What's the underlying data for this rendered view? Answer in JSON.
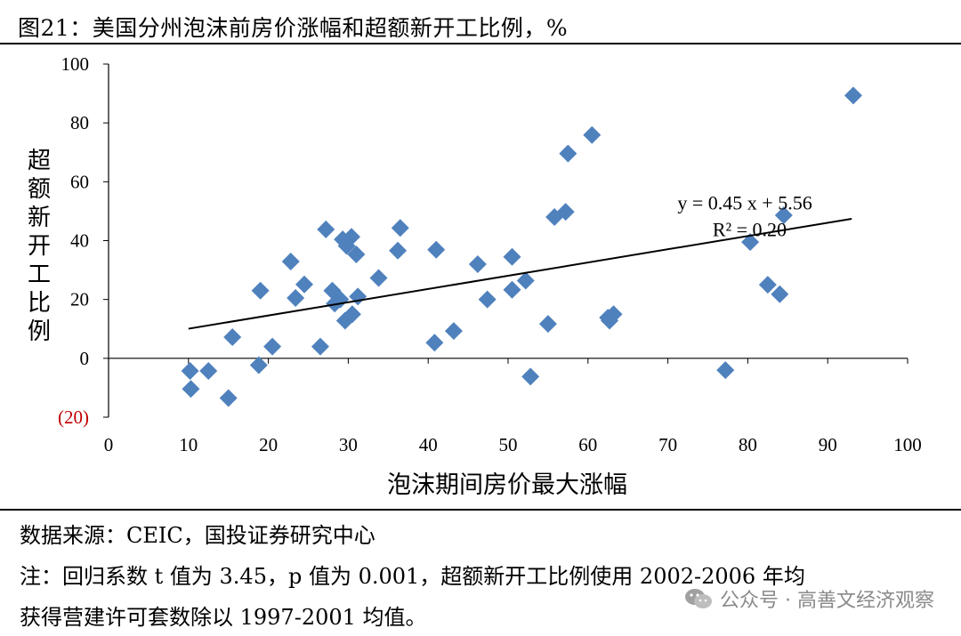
{
  "header": {
    "title": "图21：美国分州泡沫前房价涨幅和超额新开工比例，%"
  },
  "footer": {
    "source": "数据来源：CEIC，国投证券研究中心",
    "note_line1": "注：回归系数 t 值为 3.45，p 值为 0.001，超额新开工比例使用 2002-2006 年均",
    "note_line2": "获得营建许可套数除以 1997-2001 均值。",
    "watermark": "公众号 · 高善文经济观察"
  },
  "colors": {
    "marker": "#4f81bd",
    "negative_tick": "#c00000",
    "trendline": "#000000"
  },
  "chart_data": {
    "type": "scatter",
    "xlabel": "泡沫期间房价最大涨幅",
    "ylabel": "超额新开工比例",
    "xlim": [
      0,
      100
    ],
    "ylim": [
      -20,
      100
    ],
    "x_ticks": [
      0,
      10,
      20,
      30,
      40,
      50,
      60,
      70,
      80,
      90,
      100
    ],
    "x_tick_labels": [
      "0",
      "10",
      "20",
      "30",
      "40",
      "50",
      "60",
      "70",
      "80",
      "90",
      "100"
    ],
    "y_ticks": [
      -20,
      0,
      20,
      40,
      60,
      80,
      100
    ],
    "y_tick_labels": [
      "(20)",
      "0",
      "20",
      "40",
      "60",
      "80",
      "100"
    ],
    "grid": false,
    "legend": "none",
    "marker": "diamond",
    "trendline": {
      "slope": 0.45,
      "intercept": 5.56,
      "x_range": [
        10,
        93
      ],
      "equation": "y = 0.45 x + 5.56",
      "r_squared": "R² = 0.20"
    },
    "points": [
      {
        "x": 10.2,
        "y": -4.3
      },
      {
        "x": 10.3,
        "y": -10.4
      },
      {
        "x": 12.5,
        "y": -4.3
      },
      {
        "x": 15.0,
        "y": -13.5
      },
      {
        "x": 15.5,
        "y": 7.2
      },
      {
        "x": 18.8,
        "y": -2.3
      },
      {
        "x": 19.0,
        "y": 23.0
      },
      {
        "x": 20.5,
        "y": 4.0
      },
      {
        "x": 22.8,
        "y": 32.9
      },
      {
        "x": 23.4,
        "y": 20.5
      },
      {
        "x": 24.5,
        "y": 25.1
      },
      {
        "x": 26.5,
        "y": 4.0
      },
      {
        "x": 27.2,
        "y": 43.8
      },
      {
        "x": 28.0,
        "y": 23.0
      },
      {
        "x": 28.3,
        "y": 18.6
      },
      {
        "x": 29.0,
        "y": 20.0
      },
      {
        "x": 29.3,
        "y": 40.4
      },
      {
        "x": 29.6,
        "y": 12.8
      },
      {
        "x": 29.8,
        "y": 38.2
      },
      {
        "x": 30.4,
        "y": 41.3
      },
      {
        "x": 30.5,
        "y": 15.0
      },
      {
        "x": 31.0,
        "y": 35.3
      },
      {
        "x": 31.2,
        "y": 21.0
      },
      {
        "x": 33.8,
        "y": 27.3
      },
      {
        "x": 36.2,
        "y": 36.6
      },
      {
        "x": 36.5,
        "y": 44.3
      },
      {
        "x": 40.8,
        "y": 5.3
      },
      {
        "x": 41.0,
        "y": 36.9
      },
      {
        "x": 43.2,
        "y": 9.3
      },
      {
        "x": 46.2,
        "y": 32.0
      },
      {
        "x": 47.4,
        "y": 20.0
      },
      {
        "x": 50.5,
        "y": 34.5
      },
      {
        "x": 50.5,
        "y": 23.3
      },
      {
        "x": 52.2,
        "y": 26.4
      },
      {
        "x": 52.8,
        "y": -6.2
      },
      {
        "x": 55.0,
        "y": 11.7
      },
      {
        "x": 55.8,
        "y": 48.0
      },
      {
        "x": 57.2,
        "y": 49.8
      },
      {
        "x": 57.5,
        "y": 69.6
      },
      {
        "x": 60.5,
        "y": 75.9
      },
      {
        "x": 62.5,
        "y": 13.8
      },
      {
        "x": 62.7,
        "y": 12.8
      },
      {
        "x": 63.2,
        "y": 15.0
      },
      {
        "x": 77.2,
        "y": -4.0
      },
      {
        "x": 80.3,
        "y": 39.5
      },
      {
        "x": 82.5,
        "y": 25.0
      },
      {
        "x": 84.0,
        "y": 21.8
      },
      {
        "x": 84.5,
        "y": 48.6
      },
      {
        "x": 93.2,
        "y": 89.3
      }
    ]
  }
}
